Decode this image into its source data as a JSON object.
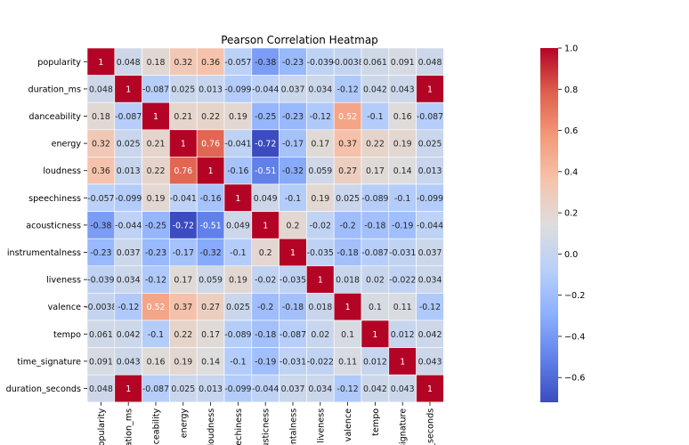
{
  "chart_data": {
    "type": "heatmap",
    "title": "Pearson Correlation Heatmap",
    "variables_full": [
      "popularity",
      "duration_ms",
      "danceability",
      "energy",
      "loudness",
      "speechiness",
      "acousticness",
      "instrumentalness",
      "liveness",
      "valence",
      "tempo",
      "time_signature",
      "duration_seconds"
    ],
    "row_labels": [
      "popularity",
      "duration_ms",
      "danceability",
      "energy",
      "loudness",
      "speechiness",
      "acousticness",
      "instrumentalness",
      "liveness",
      "valence",
      "tempo",
      "time_signature",
      "duration_seconds"
    ],
    "col_labels": [
      "popularity",
      "ation_ms",
      "anceability",
      "energy",
      "loudness",
      "peechiness",
      "cousticness",
      "rumentalness",
      "liveness",
      "valence",
      "tempo",
      "_signature",
      "n_seconds"
    ],
    "cell_labels": [
      [
        "1",
        "0.048",
        "0.18",
        "0.32",
        "0.36",
        "-0.057",
        "-0.38",
        "-0.23",
        "-0.039",
        "-0.0038",
        "0.061",
        "0.091",
        "0.048"
      ],
      [
        "0.048",
        "1",
        "-0.087",
        "0.025",
        "0.013",
        "-0.099",
        "-0.044",
        "0.037",
        "0.034",
        "-0.12",
        "0.042",
        "0.043",
        "1"
      ],
      [
        "0.18",
        "-0.087",
        "1",
        "0.21",
        "0.22",
        "0.19",
        "-0.25",
        "-0.23",
        "-0.12",
        "0.52",
        "-0.1",
        "0.16",
        "-0.087"
      ],
      [
        "0.32",
        "0.025",
        "0.21",
        "1",
        "0.76",
        "-0.041",
        "-0.72",
        "-0.17",
        "0.17",
        "0.37",
        "0.22",
        "0.19",
        "0.025"
      ],
      [
        "0.36",
        "0.013",
        "0.22",
        "0.76",
        "1",
        "-0.16",
        "-0.51",
        "-0.32",
        "0.059",
        "0.27",
        "0.17",
        "0.14",
        "0.013"
      ],
      [
        "-0.057",
        "-0.099",
        "0.19",
        "-0.041",
        "-0.16",
        "1",
        "0.049",
        "-0.1",
        "0.19",
        "0.025",
        "-0.089",
        "-0.1",
        "-0.099"
      ],
      [
        "-0.38",
        "-0.044",
        "-0.25",
        "-0.72",
        "-0.51",
        "0.049",
        "1",
        "0.2",
        "-0.02",
        "-0.2",
        "-0.18",
        "-0.19",
        "-0.044"
      ],
      [
        "-0.23",
        "0.037",
        "-0.23",
        "-0.17",
        "-0.32",
        "-0.1",
        "0.2",
        "1",
        "-0.035",
        "-0.18",
        "-0.087",
        "-0.031",
        "0.037"
      ],
      [
        "-0.039",
        "0.034",
        "-0.12",
        "0.17",
        "0.059",
        "0.19",
        "-0.02",
        "-0.035",
        "1",
        "0.018",
        "0.02",
        "-0.022",
        "0.034"
      ],
      [
        "-0.0038",
        "-0.12",
        "0.52",
        "0.37",
        "0.27",
        "0.025",
        "-0.2",
        "-0.18",
        "0.018",
        "1",
        "0.1",
        "0.11",
        "-0.12"
      ],
      [
        "0.061",
        "0.042",
        "-0.1",
        "0.22",
        "0.17",
        "-0.089",
        "-0.18",
        "-0.087",
        "0.02",
        "0.1",
        "1",
        "0.012",
        "0.042"
      ],
      [
        "0.091",
        "0.043",
        "0.16",
        "0.19",
        "0.14",
        "-0.1",
        "-0.19",
        "-0.031",
        "-0.022",
        "0.11",
        "0.012",
        "1",
        "0.043"
      ],
      [
        "0.048",
        "1",
        "-0.087",
        "0.025",
        "0.013",
        "-0.099",
        "-0.044",
        "0.037",
        "0.034",
        "-0.12",
        "0.042",
        "0.043",
        "1"
      ]
    ],
    "colorbar": {
      "colormap": "coolwarm",
      "vmin": -0.72,
      "vmax": 1.0,
      "ticks": [
        1.0,
        0.8,
        0.6,
        0.4,
        0.2,
        0.0,
        -0.2,
        -0.4,
        -0.6
      ],
      "tick_labels": [
        "1.0",
        "0.8",
        "0.6",
        "0.4",
        "0.2",
        "0.0",
        "−0.2",
        "−0.4",
        "−0.6"
      ]
    },
    "grid": false,
    "legend": "colorbar-right"
  }
}
